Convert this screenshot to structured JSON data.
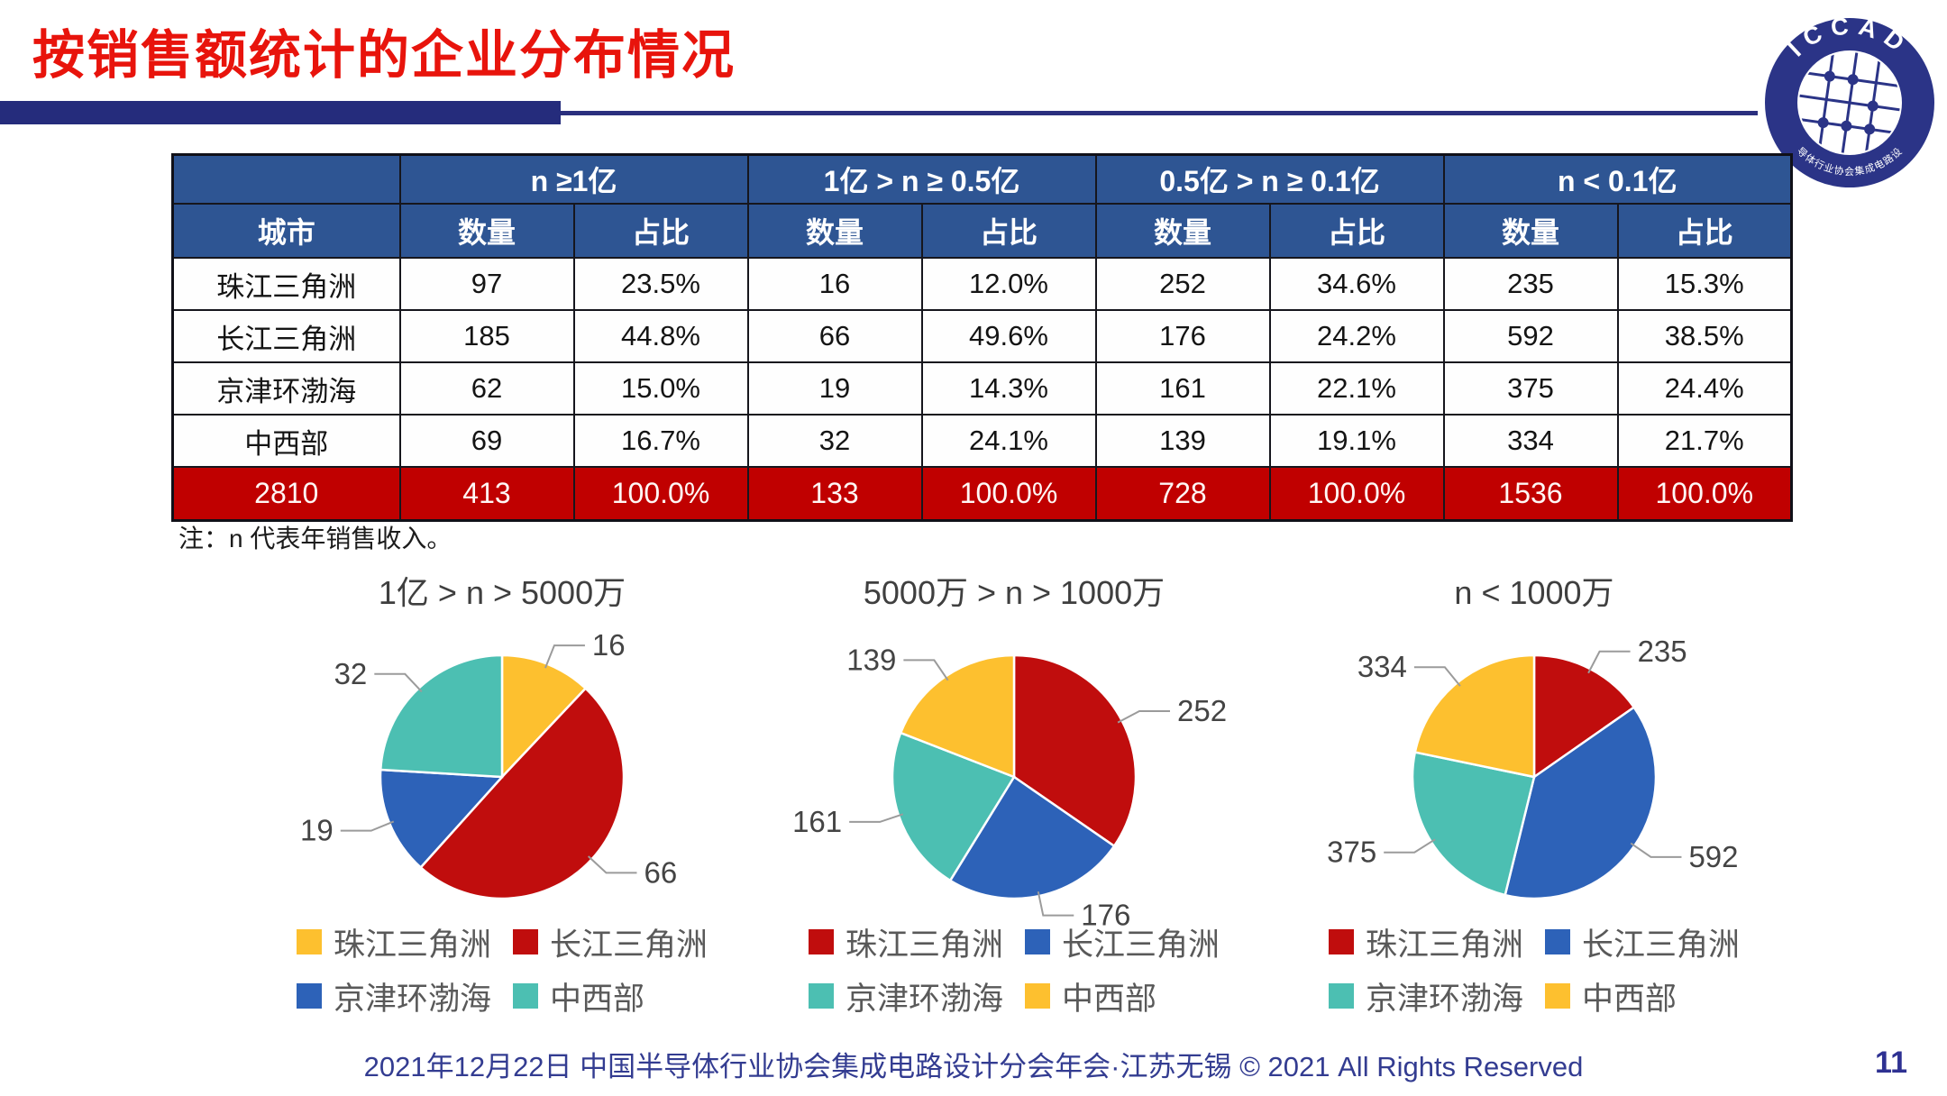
{
  "slide": {
    "title": "按销售额统计的企业分布情况",
    "note": "注：n 代表年销售收入。",
    "footer": "2021年12月22日 中国半导体行业协会集成电路设计分会年会·江苏无锡 © 2021 All Rights Reserved",
    "page_number": "11",
    "logo": {
      "top_text": "ICCAD",
      "bottom_text": "中国半导体行业协会集成电路设计分会"
    }
  },
  "table": {
    "corner_label": "",
    "city_header": "城市",
    "group_headers": [
      "n ≥1亿",
      "1亿 > n ≥ 0.5亿",
      "0.5亿 > n ≥ 0.1亿",
      "n < 0.1亿"
    ],
    "sub_headers": [
      "数量",
      "占比"
    ],
    "rows": [
      {
        "city": "珠江三角洲",
        "values": [
          "97",
          "23.5%",
          "16",
          "12.0%",
          "252",
          "34.6%",
          "235",
          "15.3%"
        ]
      },
      {
        "city": "长江三角洲",
        "values": [
          "185",
          "44.8%",
          "66",
          "49.6%",
          "176",
          "24.2%",
          "592",
          "38.5%"
        ]
      },
      {
        "city": "京津环渤海",
        "values": [
          "62",
          "15.0%",
          "19",
          "14.3%",
          "161",
          "22.1%",
          "375",
          "24.4%"
        ]
      },
      {
        "city": "中西部",
        "values": [
          "69",
          "16.7%",
          "32",
          "24.1%",
          "139",
          "19.1%",
          "334",
          "21.7%"
        ]
      }
    ],
    "total_row": {
      "city": "2810",
      "values": [
        "413",
        "100.0%",
        "133",
        "100.0%",
        "728",
        "100.0%",
        "1536",
        "100.0%"
      ]
    }
  },
  "chart_data": [
    {
      "type": "pie",
      "title": "1亿 > n > 5000万",
      "labels": [
        "珠江三角洲",
        "长江三角洲",
        "京津环渤海",
        "中西部"
      ],
      "values": [
        16,
        66,
        19,
        32
      ],
      "colors": [
        "#fdc02f",
        "#c00d0d",
        "#2d62b8",
        "#4cbfb2"
      ],
      "start_angle": 0,
      "direction": "clockwise",
      "data_labels": "values",
      "legend_position": "bottom"
    },
    {
      "type": "pie",
      "title": "5000万 > n > 1000万",
      "labels": [
        "珠江三角洲",
        "长江三角洲",
        "京津环渤海",
        "中西部"
      ],
      "values": [
        252,
        176,
        161,
        139
      ],
      "colors": [
        "#c00d0d",
        "#2d62b8",
        "#4cbfb2",
        "#fdc02f"
      ],
      "start_angle": 0,
      "direction": "clockwise",
      "data_labels": "values",
      "legend_position": "bottom"
    },
    {
      "type": "pie",
      "title": "n < 1000万",
      "labels": [
        "珠江三角洲",
        "长江三角洲",
        "京津环渤海",
        "中西部"
      ],
      "values": [
        235,
        592,
        375,
        334
      ],
      "colors": [
        "#c00d0d",
        "#2d62b8",
        "#4cbfb2",
        "#fdc02f"
      ],
      "start_angle": 0,
      "direction": "clockwise",
      "data_labels": "values",
      "legend_position": "bottom"
    }
  ],
  "colors": {
    "title_red": "#e8140c",
    "rule_navy": "#252c7c",
    "header_blue": "#2e5593",
    "total_row_red": "#c00000",
    "pie_yellow": "#fdc02f",
    "pie_red": "#c00d0d",
    "pie_blue": "#2d62b8",
    "pie_teal": "#4cbfb2",
    "footer_navy": "#333c91"
  }
}
